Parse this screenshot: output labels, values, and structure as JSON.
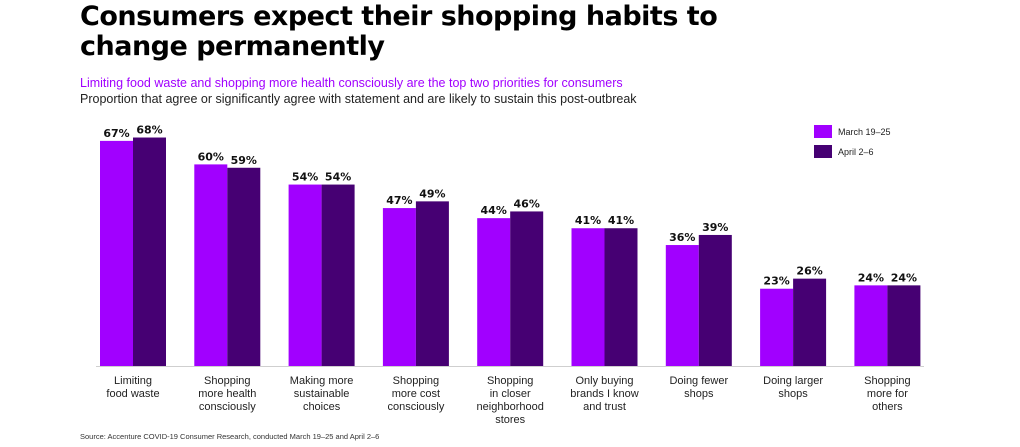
{
  "header": {
    "title": "Consumers expect their shopping habits to change permanently",
    "subtitle": "Limiting food waste and shopping more health consciously are the top two priorities for consumers",
    "note": "Proportion that agree or significantly agree with statement and are likely to sustain this post-outbreak"
  },
  "source": "Source: Accenture COVID-19 Consumer Research, conducted March 19–25 and April 2–6",
  "colors": {
    "series1": "#a100ff",
    "series2": "#460073"
  },
  "chart_data": {
    "type": "bar",
    "categories": [
      [
        "Limiting",
        "food waste"
      ],
      [
        "Shopping",
        "more health",
        "consciously"
      ],
      [
        "Making more",
        "sustainable",
        "choices"
      ],
      [
        "Shopping",
        "more cost",
        "consciously"
      ],
      [
        "Shopping",
        "in closer",
        "neighborhood",
        "stores"
      ],
      [
        "Only buying",
        "brands I know",
        "and trust"
      ],
      [
        "Doing fewer",
        "shops"
      ],
      [
        "Doing larger",
        "shops"
      ],
      [
        "Shopping",
        "more for",
        "others"
      ]
    ],
    "series": [
      {
        "name": "March 19–25",
        "values": [
          67,
          60,
          54,
          47,
          44,
          41,
          36,
          23,
          24
        ]
      },
      {
        "name": "April 2–6",
        "values": [
          68,
          59,
          54,
          49,
          46,
          41,
          39,
          26,
          24
        ]
      }
    ],
    "data_labels": [
      [
        "67%",
        "60%",
        "54%",
        "47%",
        "44%",
        "41%",
        "36%",
        "23%",
        "24%"
      ],
      [
        "68%",
        "59%",
        "54%",
        "49%",
        "46%",
        "41%",
        "39%",
        "26%",
        "24%"
      ]
    ],
    "legend_position": "top-right",
    "grid": false,
    "ylim": [
      0,
      70
    ]
  }
}
